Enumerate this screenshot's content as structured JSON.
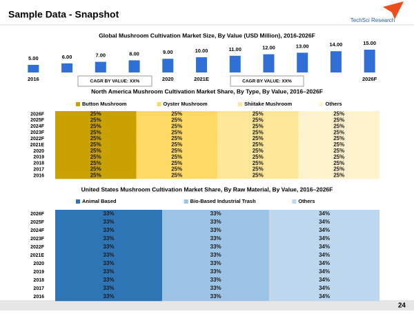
{
  "header": {
    "title": "Sample Data - Snapshot",
    "logo": "TechSci Research"
  },
  "page_number": "24",
  "chart_data": [
    {
      "type": "bar",
      "title": "Global Mushroom Cultivation Market Size, By Value (USD Million), 2016-2026F",
      "categories": [
        "2016",
        null,
        null,
        null,
        "2020",
        "2021E",
        null,
        null,
        null,
        null,
        "2026F"
      ],
      "values": [
        5,
        6,
        7,
        8,
        9,
        10,
        11,
        12,
        13,
        14,
        15
      ],
      "value_labels": [
        "5.00",
        "6.00",
        "7.00",
        "8.00",
        "9.00",
        "10.00",
        "11.00",
        "12.00",
        "13.00",
        "14.00",
        "15.00"
      ],
      "color": "#2f6fd6",
      "annotations": [
        "CAGR BY VALUE: XX%",
        "CAGR BY VALUE: XX%"
      ]
    },
    {
      "type": "stacked-barh",
      "title": "North America Mushroom Cultivation Market Share, By Type, By Value, 2016–2026F",
      "categories": [
        "2026F",
        "2025F",
        "2024F",
        "2023F",
        "2022F",
        "2021E",
        "2020",
        "2019",
        "2018",
        "2017",
        "2016"
      ],
      "series": [
        {
          "name": "Button Mushroom",
          "color": "#c9a100",
          "values": [
            25,
            25,
            25,
            25,
            25,
            25,
            25,
            25,
            25,
            25,
            25
          ],
          "value_labels": [
            "25%",
            "25%",
            "25%",
            "25%",
            "25%",
            "25%",
            "25%",
            "25%",
            "25%",
            "25%",
            "25%"
          ]
        },
        {
          "name": "Oyster Mushroom",
          "color": "#ffd966",
          "values": [
            25,
            25,
            25,
            25,
            25,
            25,
            25,
            25,
            25,
            25,
            25
          ],
          "value_labels": [
            "25%",
            "25%",
            "25%",
            "25%",
            "25%",
            "25%",
            "25%",
            "25%",
            "25%",
            "25%",
            "25%"
          ]
        },
        {
          "name": "Shiitake Mushroom",
          "color": "#ffe699",
          "values": [
            25,
            25,
            25,
            25,
            25,
            25,
            25,
            25,
            25,
            25,
            25
          ],
          "value_labels": [
            "25%",
            "25%",
            "25%",
            "25%",
            "25%",
            "25%",
            "25%",
            "25%",
            "25%",
            "25%",
            "25%"
          ]
        },
        {
          "name": "Others",
          "color": "#fff2cc",
          "values": [
            25,
            25,
            25,
            25,
            25,
            25,
            25,
            25,
            25,
            25,
            25
          ],
          "value_labels": [
            "25%",
            "25%",
            "25%",
            "25%",
            "25%",
            "25%",
            "25%",
            "25%",
            "25%",
            "25%",
            "25%"
          ]
        }
      ]
    },
    {
      "type": "stacked-barh",
      "title": "United States Mushroom Cultivation Market Share, By Raw Material, By Value, 2016–2026F",
      "categories": [
        "2026F",
        "2025F",
        "2024F",
        "2023F",
        "2022F",
        "2021E",
        "2020",
        "2019",
        "2018",
        "2017",
        "2016"
      ],
      "series": [
        {
          "name": "Animal Based",
          "color": "#2e75b6",
          "values": [
            33,
            33,
            33,
            33,
            33,
            33,
            33,
            33,
            33,
            33,
            33
          ],
          "value_labels": [
            "33%",
            "33%",
            "33%",
            "33%",
            "33%",
            "33%",
            "33%",
            "33%",
            "33%",
            "33%",
            "33%"
          ]
        },
        {
          "name": "Bio-Based Industrial Trash",
          "color": "#9dc3e6",
          "values": [
            33,
            33,
            33,
            33,
            33,
            33,
            33,
            33,
            33,
            33,
            33
          ],
          "value_labels": [
            "33%",
            "33%",
            "33%",
            "33%",
            "33%",
            "33%",
            "33%",
            "33%",
            "33%",
            "33%",
            "33%"
          ]
        },
        {
          "name": "Others",
          "color": "#bdd7ee",
          "values": [
            34,
            34,
            34,
            34,
            34,
            34,
            34,
            34,
            34,
            34,
            34
          ],
          "value_labels": [
            "34%",
            "34%",
            "34%",
            "34%",
            "34%",
            "34%",
            "34%",
            "34%",
            "34%",
            "34%",
            "34%"
          ]
        }
      ]
    }
  ]
}
